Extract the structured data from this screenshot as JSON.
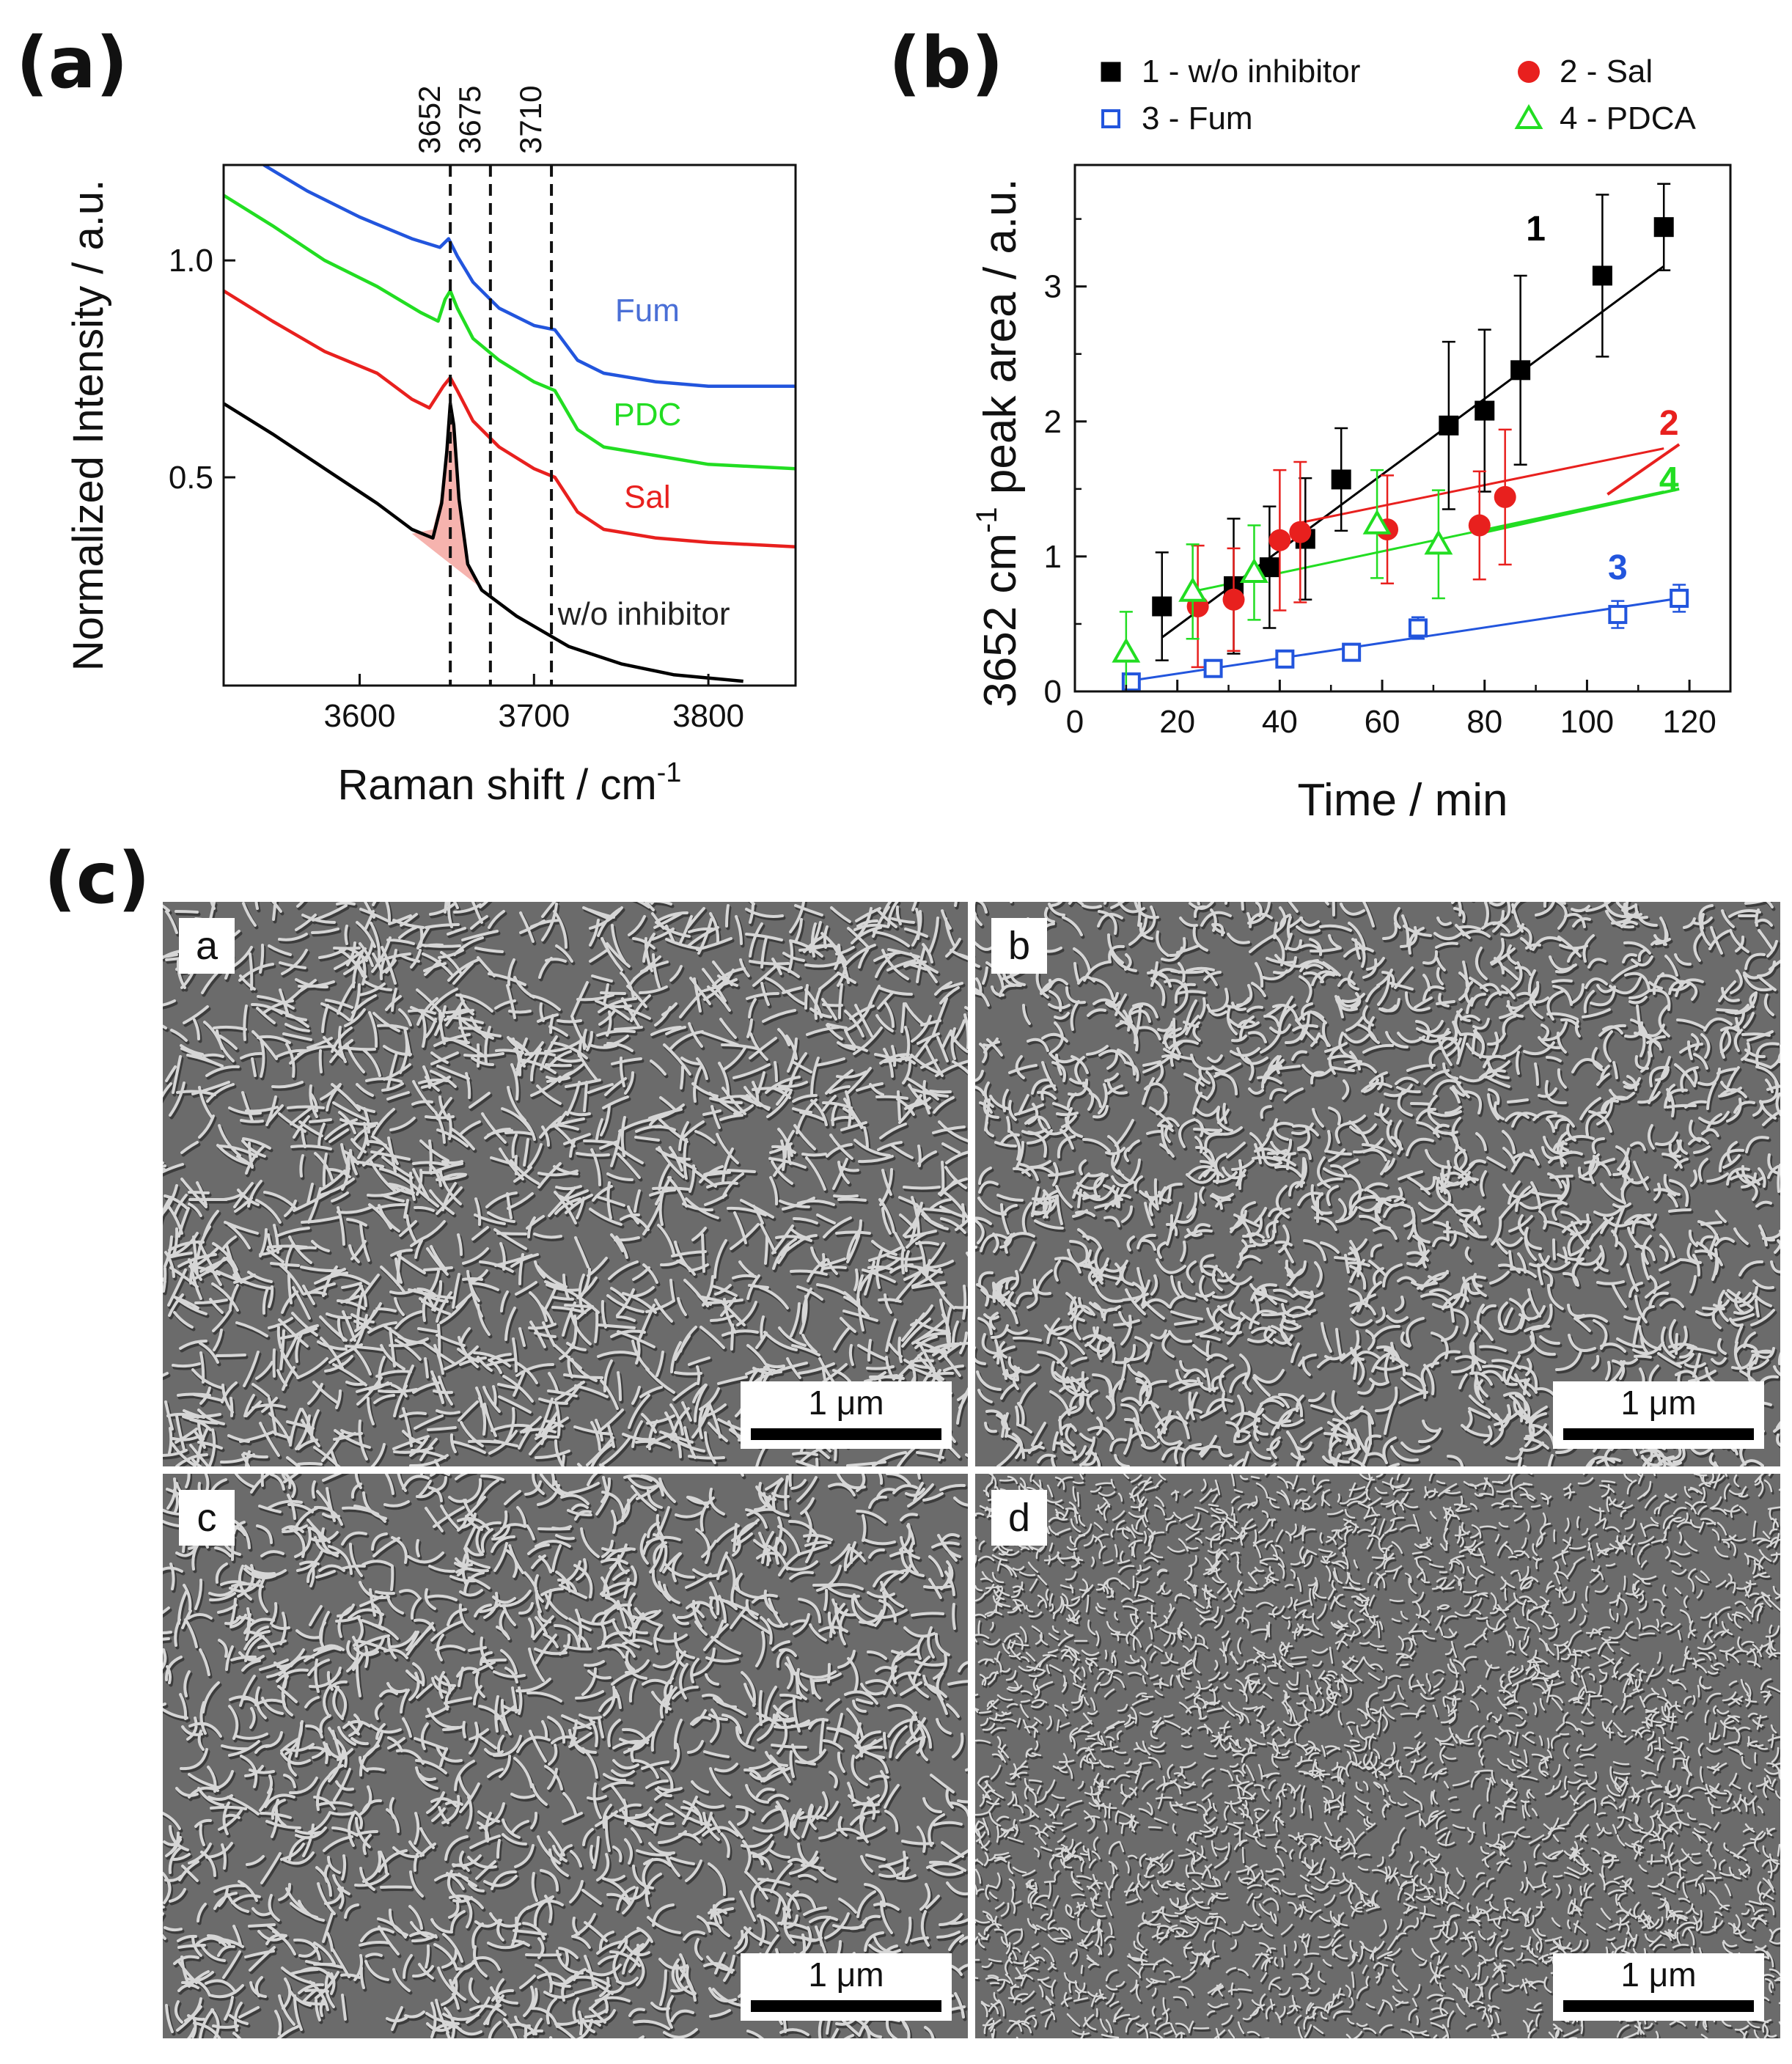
{
  "panels": {
    "a": "(a)",
    "b": "(b)",
    "c": "(c)"
  },
  "chart_data": [
    {
      "type": "line",
      "panel": "(a)",
      "xlabel": "Raman shift / cm",
      "xlabel_sup": "-1",
      "ylabel": "Normalized Intensity / a.u.",
      "xlim": [
        3522,
        3850
      ],
      "ylim": [
        0.02,
        1.22
      ],
      "xticks": [
        3600,
        3700,
        3800
      ],
      "yticks": [
        0.5,
        1.0
      ],
      "ytick_labels": [
        "0.5",
        "1.0"
      ],
      "reference_lines": [
        {
          "x": 3652,
          "label": "3652"
        },
        {
          "x": 3675,
          "label": "3675"
        },
        {
          "x": 3710,
          "label": "3710"
        }
      ],
      "series": [
        {
          "name": "w/o inhibitor",
          "color": "#000000",
          "points": [
            [
              3522,
              0.67
            ],
            [
              3550,
              0.6
            ],
            [
              3580,
              0.52
            ],
            [
              3610,
              0.44
            ],
            [
              3630,
              0.38
            ],
            [
              3642,
              0.36
            ],
            [
              3647,
              0.44
            ],
            [
              3650,
              0.56
            ],
            [
              3652,
              0.67
            ],
            [
              3654,
              0.62
            ],
            [
              3657,
              0.45
            ],
            [
              3662,
              0.3
            ],
            [
              3670,
              0.24
            ],
            [
              3690,
              0.18
            ],
            [
              3720,
              0.11
            ],
            [
              3750,
              0.07
            ],
            [
              3780,
              0.045
            ],
            [
              3820,
              0.03
            ]
          ]
        },
        {
          "name": "Sal",
          "color": "#e8201e",
          "points": [
            [
              3522,
              0.93
            ],
            [
              3550,
              0.86
            ],
            [
              3580,
              0.79
            ],
            [
              3610,
              0.74
            ],
            [
              3630,
              0.68
            ],
            [
              3640,
              0.66
            ],
            [
              3648,
              0.71
            ],
            [
              3652,
              0.73
            ],
            [
              3656,
              0.7
            ],
            [
              3665,
              0.63
            ],
            [
              3680,
              0.57
            ],
            [
              3700,
              0.52
            ],
            [
              3712,
              0.5
            ],
            [
              3725,
              0.42
            ],
            [
              3740,
              0.38
            ],
            [
              3770,
              0.36
            ],
            [
              3800,
              0.35
            ],
            [
              3850,
              0.34
            ]
          ]
        },
        {
          "name": "PDC",
          "color": "#22dd22",
          "points": [
            [
              3522,
              1.15
            ],
            [
              3550,
              1.08
            ],
            [
              3580,
              1.0
            ],
            [
              3610,
              0.94
            ],
            [
              3635,
              0.88
            ],
            [
              3645,
              0.86
            ],
            [
              3649,
              0.91
            ],
            [
              3652,
              0.93
            ],
            [
              3656,
              0.89
            ],
            [
              3665,
              0.82
            ],
            [
              3680,
              0.77
            ],
            [
              3700,
              0.72
            ],
            [
              3712,
              0.7
            ],
            [
              3725,
              0.61
            ],
            [
              3740,
              0.57
            ],
            [
              3770,
              0.55
            ],
            [
              3800,
              0.53
            ],
            [
              3850,
              0.52
            ]
          ]
        },
        {
          "name": "Fum",
          "color": "#2255dd",
          "points": [
            [
              3545,
              1.22
            ],
            [
              3570,
              1.16
            ],
            [
              3600,
              1.1
            ],
            [
              3630,
              1.05
            ],
            [
              3646,
              1.03
            ],
            [
              3651,
              1.05
            ],
            [
              3656,
              1.01
            ],
            [
              3665,
              0.95
            ],
            [
              3680,
              0.89
            ],
            [
              3700,
              0.85
            ],
            [
              3712,
              0.84
            ],
            [
              3725,
              0.77
            ],
            [
              3740,
              0.74
            ],
            [
              3770,
              0.72
            ],
            [
              3800,
              0.71
            ],
            [
              3850,
              0.71
            ]
          ]
        }
      ],
      "curve_labels": [
        {
          "text": "Fum",
          "series": "Fum",
          "x": 3765,
          "y": 0.86,
          "color": "#4a6fd6"
        },
        {
          "text": "PDC",
          "series": "PDC",
          "x": 3765,
          "y": 0.62,
          "color": "#22dd22"
        },
        {
          "text": "Sal",
          "series": "Sal",
          "x": 3765,
          "y": 0.43,
          "color": "#e8201e"
        },
        {
          "text": "w/o inhibitor",
          "series": "w/o inhibitor",
          "x": 3763,
          "y": 0.16,
          "color": "#222222"
        }
      ],
      "shaded_peak": {
        "series": "w/o inhibitor",
        "color": "#f4a6a0",
        "points": [
          [
            3630,
            0.37
          ],
          [
            3642,
            0.38
          ],
          [
            3647,
            0.46
          ],
          [
            3650,
            0.57
          ],
          [
            3652,
            0.66
          ],
          [
            3654,
            0.61
          ],
          [
            3657,
            0.45
          ],
          [
            3662,
            0.3
          ],
          [
            3668,
            0.25
          ]
        ]
      }
    },
    {
      "type": "scatter",
      "panel": "(b)",
      "xlabel": "Time / min",
      "ylabel": "3652 cm",
      "ylabel_sup": "-1",
      "ylabel_suffix": " peak area / a.u.",
      "xlim": [
        0,
        128
      ],
      "ylim": [
        0,
        3.9
      ],
      "xticks": [
        0,
        20,
        40,
        60,
        80,
        100,
        120
      ],
      "yticks": [
        0,
        1,
        2,
        3
      ],
      "legend": "top",
      "series": [
        {
          "name": "1 - w/o inhibitor",
          "label": "1",
          "color": "#000000",
          "marker": "square-filled",
          "x": [
            17,
            31,
            38,
            45,
            52,
            73,
            80,
            87,
            103,
            115
          ],
          "y": [
            0.63,
            0.78,
            0.92,
            1.13,
            1.57,
            1.97,
            2.08,
            2.38,
            3.08,
            3.44
          ],
          "err": [
            0.4,
            0.5,
            0.45,
            0.45,
            0.38,
            0.62,
            0.6,
            0.7,
            0.6,
            0.32
          ],
          "fit": [
            [
              17,
              0.4
            ],
            [
              115,
              3.15
            ]
          ]
        },
        {
          "name": "2 - Sal",
          "label": "2",
          "color": "#e8201e",
          "marker": "circle-filled",
          "x": [
            24,
            31,
            40,
            44,
            61,
            79,
            84
          ],
          "y": [
            0.63,
            0.68,
            1.12,
            1.18,
            1.2,
            1.23,
            1.44
          ],
          "err": [
            0.45,
            0.38,
            0.52,
            0.52,
            0.4,
            0.4,
            0.5
          ],
          "fit": [
            [
              44,
              1.25
            ],
            [
              115,
              1.8
            ]
          ]
        },
        {
          "name": "3 - Fum",
          "label": "3",
          "color": "#2255dd",
          "marker": "square-open",
          "x": [
            11,
            27,
            41,
            54,
            67,
            106,
            118
          ],
          "y": [
            0.07,
            0.17,
            0.24,
            0.29,
            0.47,
            0.57,
            0.69
          ],
          "err": [
            0.04,
            0.04,
            0.05,
            0.05,
            0.08,
            0.1,
            0.1
          ],
          "fit": [
            [
              11,
              0.08
            ],
            [
              118,
              0.69
            ]
          ]
        },
        {
          "name": "4 - PDCA",
          "label": "4",
          "color": "#22dd22",
          "marker": "triangle-open",
          "x": [
            10,
            23,
            35,
            59,
            71
          ],
          "y": [
            0.29,
            0.74,
            0.88,
            1.24,
            1.09
          ],
          "err": [
            0.3,
            0.35,
            0.35,
            0.4,
            0.4
          ],
          "fit": [
            [
              23,
              0.74
            ],
            [
              115,
              1.48
            ]
          ]
        }
      ],
      "series_labels": [
        {
          "text": "1",
          "x": 90,
          "y": 3.34,
          "color": "#000000"
        },
        {
          "text": "2",
          "x": 116,
          "y": 1.9,
          "color": "#e8201e"
        },
        {
          "text": "4",
          "x": 116,
          "y": 1.48,
          "color": "#22dd22"
        },
        {
          "text": "3",
          "x": 106,
          "y": 0.83,
          "color": "#2255dd"
        }
      ]
    }
  ],
  "micrographs": [
    {
      "letter": "a",
      "scale": "1 μm"
    },
    {
      "letter": "b",
      "scale": "1 μm"
    },
    {
      "letter": "c",
      "scale": "1 μm"
    },
    {
      "letter": "d",
      "scale": "1 μm"
    }
  ]
}
